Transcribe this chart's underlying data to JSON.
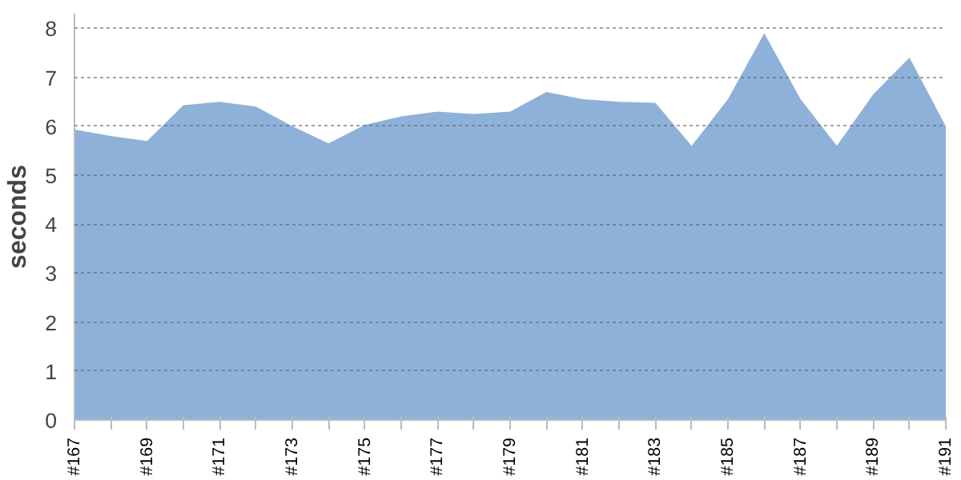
{
  "chart_data": {
    "type": "area",
    "ylabel": "seconds",
    "categories": [
      "#167",
      null,
      "#169",
      null,
      "#171",
      null,
      "#173",
      null,
      "#175",
      null,
      "#177",
      null,
      "#179",
      null,
      "#181",
      null,
      "#183",
      null,
      "#185",
      null,
      "#187",
      null,
      "#189",
      null,
      "#191"
    ],
    "series": [
      {
        "color": "#8eb1da",
        "values": [
          5.93,
          5.8,
          5.7,
          6.43,
          6.5,
          6.4,
          6.0,
          5.65,
          6.03,
          6.2,
          6.3,
          6.25,
          6.3,
          6.7,
          6.55,
          6.5,
          6.48,
          5.6,
          6.55,
          7.9,
          6.55,
          5.6,
          6.65,
          7.4,
          6.0
        ]
      }
    ],
    "ylim": [
      0,
      8.3
    ],
    "yticks": [
      0,
      1,
      2,
      3,
      4,
      5,
      6,
      7,
      8
    ],
    "grid": "y"
  }
}
